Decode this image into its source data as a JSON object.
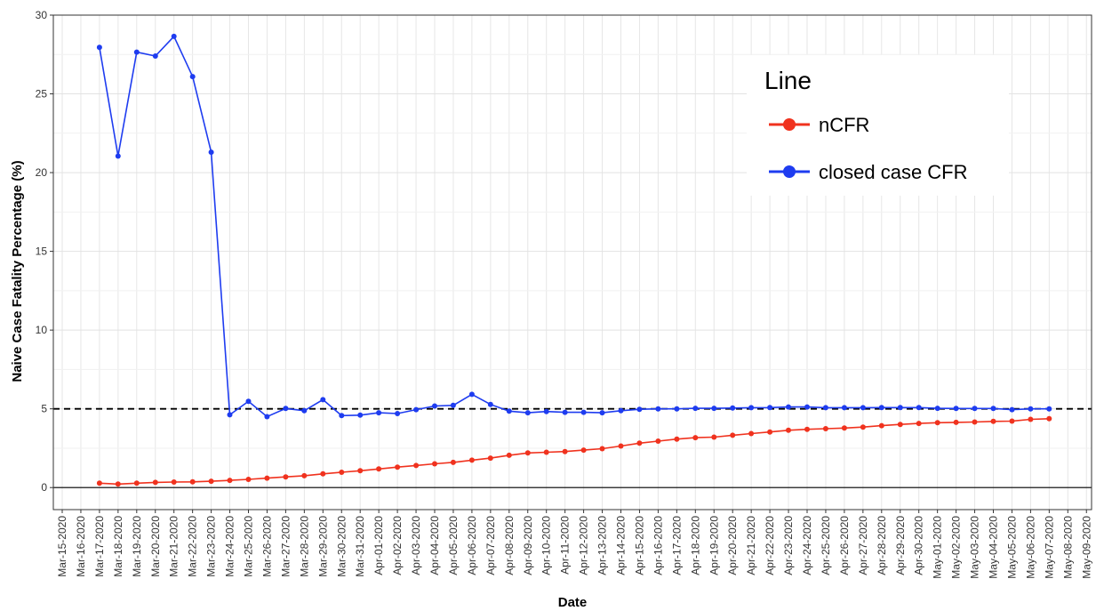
{
  "chart_data": {
    "type": "line",
    "title": "",
    "xlabel": "Date",
    "ylabel": "Naive Case Fatality Percentage (%)",
    "ylim": [
      -1.4,
      30
    ],
    "yticks": [
      0,
      5,
      10,
      15,
      20,
      25,
      30
    ],
    "x_tick_labels": [
      "Mar-15-2020",
      "Mar-16-2020",
      "Mar-17-2020",
      "Mar-18-2020",
      "Mar-19-2020",
      "Mar-20-2020",
      "Mar-21-2020",
      "Mar-22-2020",
      "Mar-23-2020",
      "Mar-24-2020",
      "Mar-25-2020",
      "Mar-26-2020",
      "Mar-27-2020",
      "Mar-28-2020",
      "Mar-29-2020",
      "Mar-30-2020",
      "Mar-31-2020",
      "Apr-01-2020",
      "Apr-02-2020",
      "Apr-03-2020",
      "Apr-04-2020",
      "Apr-05-2020",
      "Apr-06-2020",
      "Apr-07-2020",
      "Apr-08-2020",
      "Apr-09-2020",
      "Apr-10-2020",
      "Apr-11-2020",
      "Apr-12-2020",
      "Apr-13-2020",
      "Apr-14-2020",
      "Apr-15-2020",
      "Apr-16-2020",
      "Apr-17-2020",
      "Apr-18-2020",
      "Apr-19-2020",
      "Apr-20-2020",
      "Apr-21-2020",
      "Apr-22-2020",
      "Apr-23-2020",
      "Apr-24-2020",
      "Apr-25-2020",
      "Apr-26-2020",
      "Apr-27-2020",
      "Apr-28-2020",
      "Apr-29-2020",
      "Apr-30-2020",
      "May-01-2020",
      "May-02-2020",
      "May-03-2020",
      "May-04-2020",
      "May-05-2020",
      "May-06-2020",
      "May-07-2020",
      "May-08-2020",
      "May-09-2020"
    ],
    "reference_line": {
      "y": 5,
      "style": "dashed"
    },
    "grid": true,
    "legend": {
      "title": "Line",
      "placement": "top-right",
      "entries": [
        "nCFR",
        "closed case CFR"
      ]
    },
    "series": [
      {
        "name": "nCFR",
        "color": "#f0321e",
        "x": [
          "Mar-17-2020",
          "Mar-18-2020",
          "Mar-19-2020",
          "Mar-20-2020",
          "Mar-21-2020",
          "Mar-22-2020",
          "Mar-23-2020",
          "Mar-24-2020",
          "Mar-25-2020",
          "Mar-26-2020",
          "Mar-27-2020",
          "Mar-28-2020",
          "Mar-29-2020",
          "Mar-30-2020",
          "Mar-31-2020",
          "Apr-01-2020",
          "Apr-02-2020",
          "Apr-03-2020",
          "Apr-04-2020",
          "Apr-05-2020",
          "Apr-06-2020",
          "Apr-07-2020",
          "Apr-08-2020",
          "Apr-09-2020",
          "Apr-10-2020",
          "Apr-11-2020",
          "Apr-12-2020",
          "Apr-13-2020",
          "Apr-14-2020",
          "Apr-15-2020",
          "Apr-16-2020",
          "Apr-17-2020",
          "Apr-18-2020",
          "Apr-19-2020",
          "Apr-20-2020",
          "Apr-21-2020",
          "Apr-22-2020",
          "Apr-23-2020",
          "Apr-24-2020",
          "Apr-25-2020",
          "Apr-26-2020",
          "Apr-27-2020",
          "Apr-28-2020",
          "Apr-29-2020",
          "Apr-30-2020",
          "May-01-2020",
          "May-02-2020",
          "May-03-2020",
          "May-04-2020",
          "May-05-2020",
          "May-06-2020",
          "May-07-2020"
        ],
        "values": [
          0.28,
          0.22,
          0.28,
          0.33,
          0.35,
          0.36,
          0.4,
          0.46,
          0.52,
          0.6,
          0.68,
          0.75,
          0.87,
          0.97,
          1.07,
          1.18,
          1.3,
          1.4,
          1.51,
          1.6,
          1.74,
          1.87,
          2.05,
          2.2,
          2.24,
          2.29,
          2.38,
          2.47,
          2.64,
          2.82,
          2.95,
          3.08,
          3.17,
          3.2,
          3.32,
          3.43,
          3.53,
          3.64,
          3.7,
          3.74,
          3.78,
          3.84,
          3.93,
          4.01,
          4.07,
          4.12,
          4.14,
          4.16,
          4.2,
          4.22,
          4.33,
          4.37
        ]
      },
      {
        "name": "closed case CFR",
        "color": "#1e3cf0",
        "x": [
          "Mar-17-2020",
          "Mar-18-2020",
          "Mar-19-2020",
          "Mar-20-2020",
          "Mar-21-2020",
          "Mar-22-2020",
          "Mar-23-2020",
          "Mar-24-2020",
          "Mar-25-2020",
          "Mar-26-2020",
          "Mar-27-2020",
          "Mar-28-2020",
          "Mar-29-2020",
          "Mar-30-2020",
          "Mar-31-2020",
          "Apr-01-2020",
          "Apr-02-2020",
          "Apr-03-2020",
          "Apr-04-2020",
          "Apr-05-2020",
          "Apr-06-2020",
          "Apr-07-2020",
          "Apr-08-2020",
          "Apr-09-2020",
          "Apr-10-2020",
          "Apr-11-2020",
          "Apr-12-2020",
          "Apr-13-2020",
          "Apr-14-2020",
          "Apr-15-2020",
          "Apr-16-2020",
          "Apr-17-2020",
          "Apr-18-2020",
          "Apr-19-2020",
          "Apr-20-2020",
          "Apr-21-2020",
          "Apr-22-2020",
          "Apr-23-2020",
          "Apr-24-2020",
          "Apr-25-2020",
          "Apr-26-2020",
          "Apr-27-2020",
          "Apr-28-2020",
          "Apr-29-2020",
          "Apr-30-2020",
          "May-01-2020",
          "May-02-2020",
          "May-03-2020",
          "May-04-2020",
          "May-05-2020",
          "May-06-2020",
          "May-07-2020"
        ],
        "values": [
          27.95,
          21.05,
          27.65,
          27.4,
          28.65,
          26.1,
          21.3,
          4.62,
          5.48,
          4.5,
          5.02,
          4.88,
          5.58,
          4.57,
          4.6,
          4.75,
          4.7,
          4.95,
          5.18,
          5.22,
          5.92,
          5.28,
          4.85,
          4.75,
          4.83,
          4.78,
          4.78,
          4.75,
          4.88,
          4.97,
          5.0,
          5.0,
          5.03,
          5.03,
          5.05,
          5.07,
          5.08,
          5.12,
          5.12,
          5.07,
          5.07,
          5.07,
          5.08,
          5.08,
          5.08,
          5.03,
          5.02,
          5.02,
          5.02,
          4.95,
          5.0,
          5.0
        ]
      }
    ]
  }
}
